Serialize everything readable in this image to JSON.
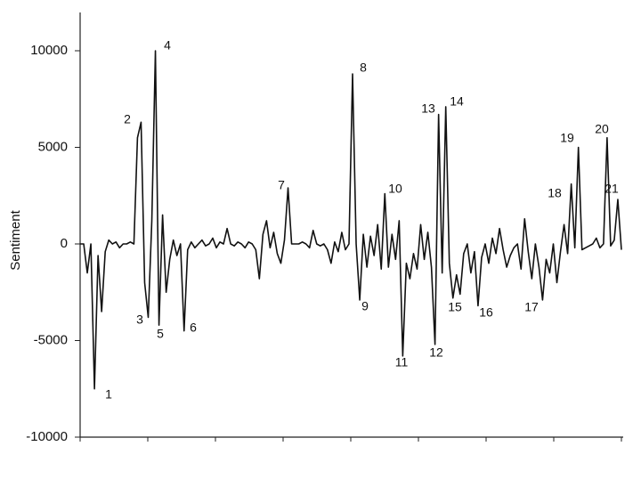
{
  "chart_data": {
    "type": "line",
    "y_label": "Sentiment",
    "color": "#111111",
    "values": [
      0,
      0,
      -1500,
      0,
      -7500,
      -600,
      -3500,
      -400,
      200,
      0,
      100,
      -200,
      0,
      0,
      100,
      0,
      5500,
      6300,
      -2000,
      -3800,
      1200,
      10000,
      -4200,
      1500,
      -2500,
      -800,
      200,
      -600,
      0,
      -4500,
      -300,
      100,
      -200,
      0,
      200,
      -100,
      0,
      300,
      -200,
      100,
      0,
      800,
      0,
      -100,
      100,
      0,
      -200,
      100,
      0,
      -300,
      -1800,
      500,
      1200,
      -200,
      600,
      -500,
      -1000,
      200,
      2900,
      0,
      0,
      0,
      100,
      0,
      -200,
      700,
      0,
      -100,
      0,
      -300,
      -1000,
      100,
      -400,
      600,
      -300,
      0,
      8800,
      0,
      -2900,
      500,
      -1200,
      400,
      -600,
      1000,
      -1300,
      2600,
      -1200,
      500,
      -800,
      1200,
      -5800,
      -1000,
      -1800,
      -500,
      -1300,
      1000,
      -800,
      600,
      -1200,
      -5200,
      6700,
      -1500,
      7100,
      -1000,
      -2800,
      -1600,
      -2600,
      -500,
      0,
      -1500,
      -400,
      -3200,
      -700,
      0,
      -1000,
      300,
      -500,
      800,
      -300,
      -1200,
      -600,
      -200,
      0,
      -1300,
      1300,
      -400,
      -1800,
      0,
      -1200,
      -2900,
      -800,
      -1500,
      0,
      -2000,
      -400,
      1000,
      -500,
      3100,
      -200,
      5000,
      -300,
      -200,
      -100,
      0,
      300,
      -200,
      0,
      5500,
      -100,
      200,
      2300,
      -300
    ],
    "ylim": [
      -10000,
      12000
    ],
    "yticks": [
      -10000,
      -5000,
      0,
      5000,
      10000
    ],
    "annotations": [
      "1",
      "2",
      "3",
      "4",
      "5",
      "6",
      "7",
      "8",
      "9",
      "10",
      "11",
      "12",
      "13",
      "14",
      "15",
      "16",
      "17",
      "18",
      "19",
      "20",
      "21"
    ]
  }
}
